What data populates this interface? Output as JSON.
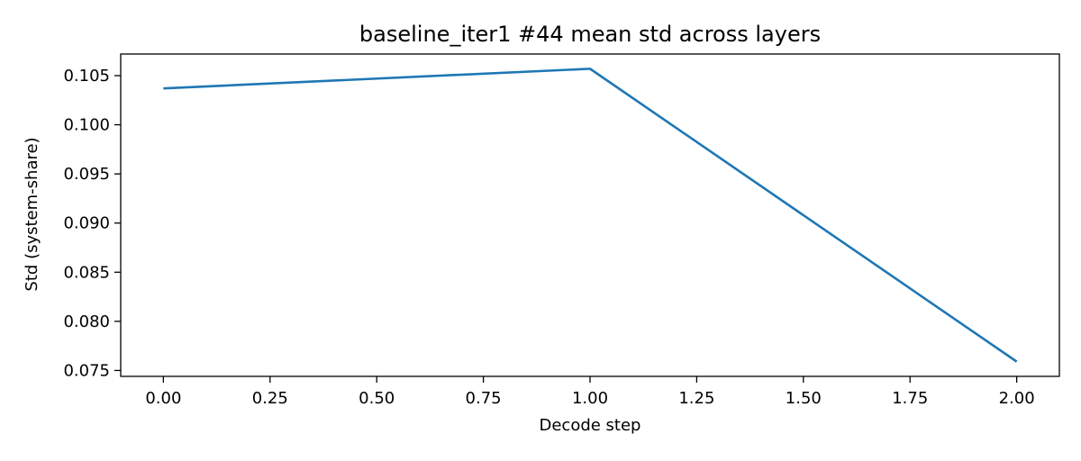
{
  "chart_data": {
    "type": "line",
    "title": "baseline_iter1 #44 mean std across layers",
    "xlabel": "Decode step",
    "ylabel": "Std (system-share)",
    "x": [
      0.0,
      1.0,
      2.0
    ],
    "series": [
      {
        "values": [
          0.1037,
          0.1057,
          0.0759
        ],
        "color": "#1f77b4"
      }
    ],
    "xlim": [
      -0.1,
      2.1
    ],
    "ylim": [
      0.0744,
      0.1072
    ],
    "xticks": [
      0.0,
      0.25,
      0.5,
      0.75,
      1.0,
      1.25,
      1.5,
      1.75,
      2.0
    ],
    "xtick_labels": [
      "0.00",
      "0.25",
      "0.50",
      "0.75",
      "1.00",
      "1.25",
      "1.50",
      "1.75",
      "2.00"
    ],
    "yticks": [
      0.075,
      0.08,
      0.085,
      0.09,
      0.095,
      0.1,
      0.105
    ],
    "ytick_labels": [
      "0.075",
      "0.080",
      "0.085",
      "0.090",
      "0.095",
      "0.100",
      "0.105"
    ],
    "grid": false,
    "legend": false
  }
}
